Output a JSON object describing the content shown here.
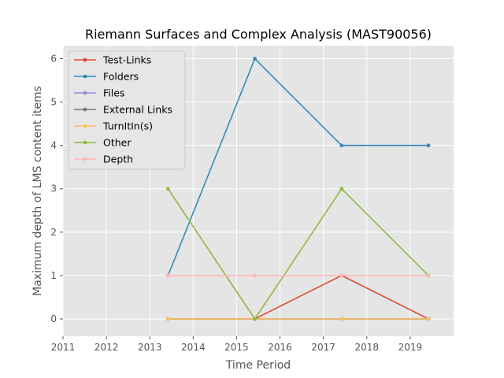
{
  "chart_data": {
    "type": "line",
    "title": "Riemann Surfaces and Complex Analysis (MAST90056)",
    "xlabel": "Time Period",
    "ylabel": "Maximum depth of LMS content items",
    "xlim": [
      2011,
      2020
    ],
    "ylim": [
      -0.4,
      6.3
    ],
    "xticks": [
      "2011",
      "2012",
      "2013",
      "2014",
      "2015",
      "2016",
      "2017",
      "2018",
      "2019"
    ],
    "yticks": [
      "0",
      "1",
      "2",
      "3",
      "4",
      "5",
      "6"
    ],
    "grid": true,
    "legend_position": "upper-left",
    "x": [
      2013.42,
      2015.42,
      2017.42,
      2019.42
    ],
    "series": [
      {
        "name": "Test-Links",
        "color": "#E24A33",
        "values": [
          0,
          0,
          1,
          0
        ]
      },
      {
        "name": "Folders",
        "color": "#348ABD",
        "values": [
          1,
          6,
          4,
          4
        ]
      },
      {
        "name": "Files",
        "color": "#988ED5",
        "values": [
          0,
          0,
          0,
          0
        ]
      },
      {
        "name": "External Links",
        "color": "#777777",
        "values": [
          0,
          0,
          0,
          0
        ]
      },
      {
        "name": "TurnItIn(s)",
        "color": "#FBC15E",
        "values": [
          0,
          0,
          0,
          0
        ]
      },
      {
        "name": "Other",
        "color": "#8EBA42",
        "values": [
          3,
          0,
          3,
          1
        ]
      },
      {
        "name": "Depth",
        "color": "#FFB5B8",
        "values": [
          1,
          1,
          1,
          1
        ]
      }
    ]
  }
}
